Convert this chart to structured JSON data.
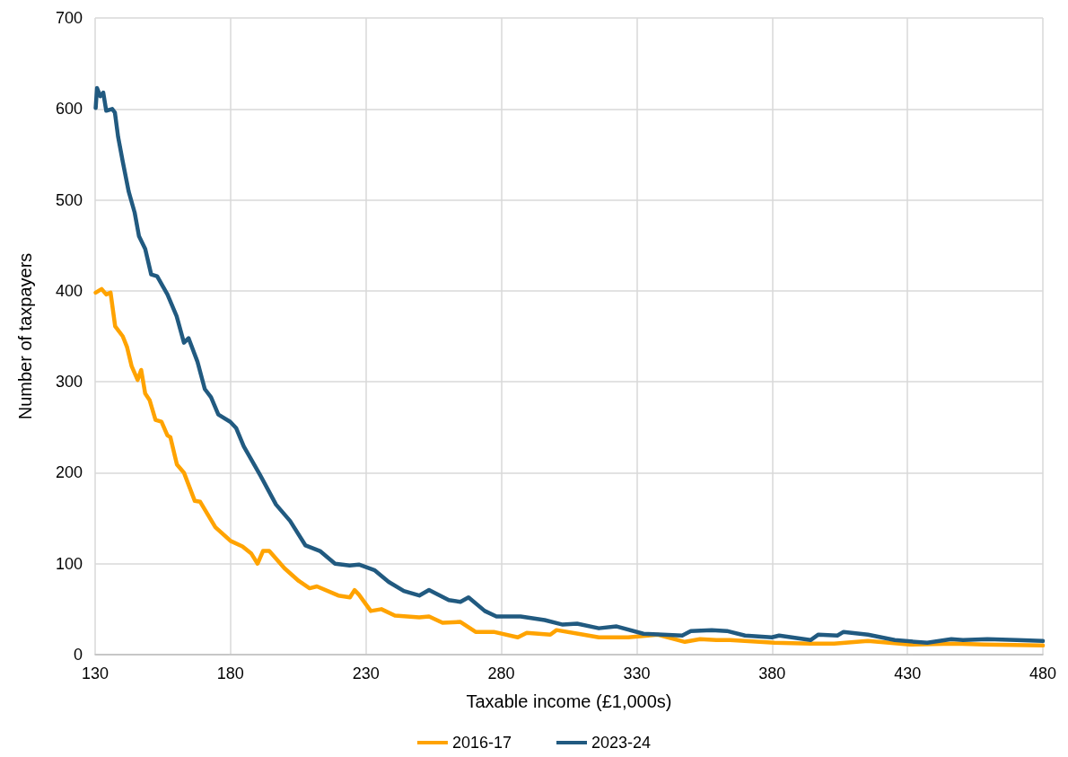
{
  "chart_data": {
    "type": "line",
    "xlabel": "Taxable income (£1,000s)",
    "ylabel": "Number of taxpayers",
    "xlim": [
      130,
      480
    ],
    "xticks": [
      130,
      180,
      230,
      280,
      330,
      380,
      430,
      480
    ],
    "ylim": [
      0,
      700
    ],
    "yticks": [
      0,
      100,
      200,
      300,
      400,
      500,
      600,
      700
    ],
    "grid": true,
    "legend": "bottom",
    "marker": "none",
    "line_style": "solid",
    "series": [
      {
        "name": "2016-17",
        "color": "#ffa300",
        "x": [
          130.2,
          132.4,
          134.1,
          135.7,
          137.4,
          140.2,
          141.8,
          143.5,
          145.7,
          147,
          148.5,
          150.1,
          152.3,
          154.5,
          156.7,
          157.8,
          160.2,
          162.8,
          166.8,
          168.8,
          174.4,
          180,
          184.4,
          187.7,
          190,
          192,
          194.3,
          199.9,
          205.2,
          209.2,
          211.9,
          219.8,
          224.1,
          225.8,
          227.4,
          231.8,
          235.7,
          240.7,
          249.7,
          253.3,
          258.3,
          264.9,
          270.5,
          277.2,
          286.1,
          289.4,
          298.1,
          300.4,
          310.3,
          316,
          326.9,
          337.8,
          347.8,
          353.4,
          359.4,
          364.4,
          380.9,
          394,
          402.9,
          415.4,
          430.9,
          447.5,
          458.4,
          480
        ],
        "values": [
          398,
          402,
          396,
          398,
          361,
          350,
          338,
          317,
          302,
          313,
          287,
          280,
          258,
          256,
          241,
          239,
          209,
          200,
          169,
          168,
          140,
          125,
          119,
          111,
          100,
          114,
          114,
          95,
          81,
          73,
          75,
          65,
          63,
          71,
          66,
          48,
          50,
          43,
          41,
          42,
          35,
          36,
          25,
          25,
          19,
          24,
          22,
          27,
          22,
          19,
          19,
          22,
          14,
          17,
          16,
          16,
          13,
          12,
          12,
          15,
          11,
          12,
          11,
          10
        ]
      },
      {
        "name": "2023-24",
        "color": "#215a80",
        "x": [
          130.2,
          130.7,
          131.9,
          133,
          134.1,
          136.3,
          137.3,
          138.5,
          140.2,
          142.4,
          144.6,
          146.2,
          148.5,
          150.7,
          152.9,
          156.7,
          160.1,
          162.8,
          164.5,
          167.8,
          170.5,
          172.8,
          175.5,
          179.9,
          182.1,
          184.9,
          191,
          196.8,
          202,
          207.7,
          213,
          218.6,
          224,
          227.4,
          233.1,
          238.4,
          244,
          249.7,
          253.3,
          260.6,
          264.9,
          267.9,
          273.9,
          278.2,
          287.1,
          296,
          302.7,
          308,
          316,
          322.6,
          332.5,
          346.8,
          350,
          357.7,
          363.3,
          370,
          379.9,
          382.6,
          394.2,
          397.1,
          404.1,
          406.4,
          415.4,
          425.3,
          437.3,
          446.2,
          450.5,
          459.5,
          470.4,
          480
        ],
        "values": [
          601,
          623,
          614,
          618,
          598,
          600,
          596,
          569,
          542,
          509,
          486,
          460,
          446,
          418,
          416,
          396,
          372,
          343,
          348,
          322,
          292,
          283,
          264,
          256,
          249,
          229,
          197,
          165,
          147,
          120,
          114,
          100,
          98,
          99,
          93,
          80,
          70,
          65,
          71,
          60,
          58,
          63,
          48,
          42,
          42,
          38,
          33,
          34,
          29,
          31,
          23,
          21,
          26,
          27,
          26,
          21,
          19,
          21,
          16,
          22,
          21,
          25,
          22,
          16,
          13,
          17,
          16,
          17,
          16,
          15
        ]
      }
    ]
  }
}
